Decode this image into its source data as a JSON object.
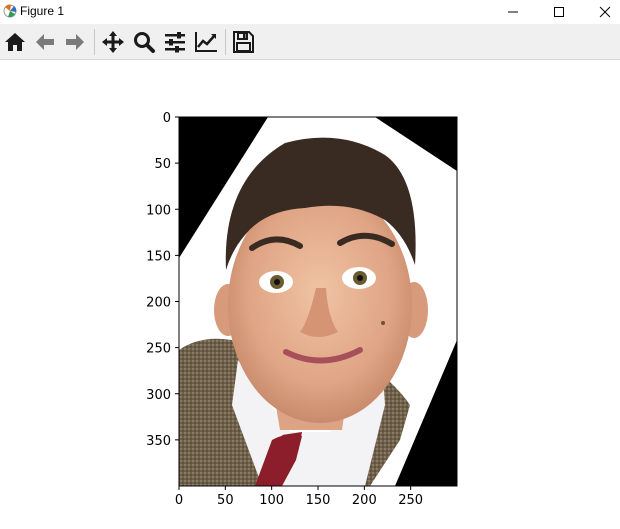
{
  "window": {
    "title": "Figure 1"
  },
  "toolbar": {
    "tools": [
      {
        "name": "home-icon"
      },
      {
        "name": "back-icon"
      },
      {
        "name": "forward-icon"
      },
      {
        "name": "pan-icon"
      },
      {
        "name": "zoom-icon"
      },
      {
        "name": "configure-subplots-icon"
      },
      {
        "name": "edit-axis-icon"
      },
      {
        "name": "save-icon"
      }
    ]
  },
  "plot": {
    "x_ticks": [
      "0",
      "50",
      "100",
      "150",
      "200",
      "250"
    ],
    "y_ticks": [
      "0",
      "50",
      "100",
      "150",
      "200",
      "250",
      "300",
      "350"
    ],
    "xlim": [
      0,
      300
    ],
    "ylim": [
      400,
      0
    ],
    "image_description_colors": {
      "background": "#000000",
      "skin": "#e8b89a",
      "hair": "#3a2b22",
      "shirt": "#f4f4f6",
      "tie": "#8c1d2a",
      "jacket": "#7a6a55"
    }
  }
}
